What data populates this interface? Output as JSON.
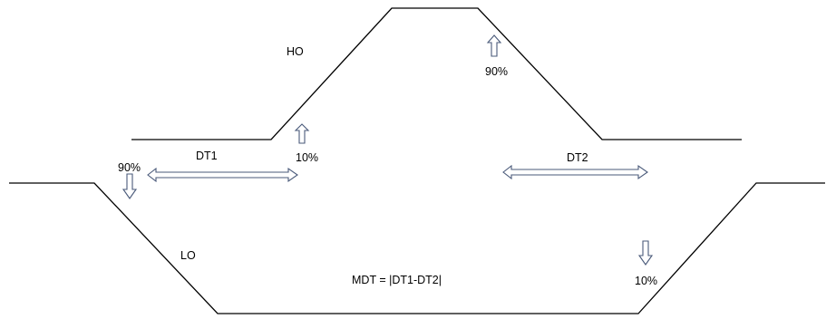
{
  "labels": {
    "ho": "HO",
    "lo": "LO",
    "dt1": "DT1",
    "dt2": "DT2",
    "ho_rise_pct": "10%",
    "ho_fall_pct": "90%",
    "lo_fall_pct": "90%",
    "lo_rise_pct": "10%",
    "formula": "MDT = |DT1-DT2|"
  }
}
